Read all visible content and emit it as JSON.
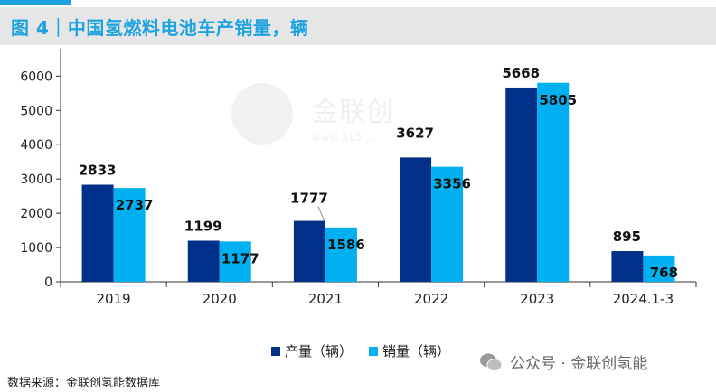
{
  "header": {
    "title": "图 4｜中国氢燃料电池车产销量，辆"
  },
  "chart_data": {
    "type": "bar",
    "title": "图 4｜中国氢燃料电池车产销量，辆",
    "categories": [
      "2019",
      "2020",
      "2021",
      "2022",
      "2023",
      "2024.1-3"
    ],
    "series": [
      {
        "name": "产量（辆）",
        "color": "#003087",
        "values": [
          2833,
          1199,
          1777,
          3627,
          5668,
          895
        ]
      },
      {
        "name": "销量（辆）",
        "color": "#00b0f0",
        "values": [
          2737,
          1177,
          1586,
          3356,
          5805,
          768
        ]
      }
    ],
    "yticks": [
      0,
      1000,
      2000,
      3000,
      4000,
      5000,
      6000
    ],
    "ylim": [
      0,
      6800
    ],
    "xlabel": "",
    "ylabel": ""
  },
  "legend": {
    "production": "产量（辆）",
    "sales": "销量（辆）"
  },
  "watermark": {
    "brand": "金联创",
    "url": "www.315i..."
  },
  "source_note": "数据来源：金联创氢能数据库",
  "wechat_caption": "公众号 · 金联创氢能"
}
